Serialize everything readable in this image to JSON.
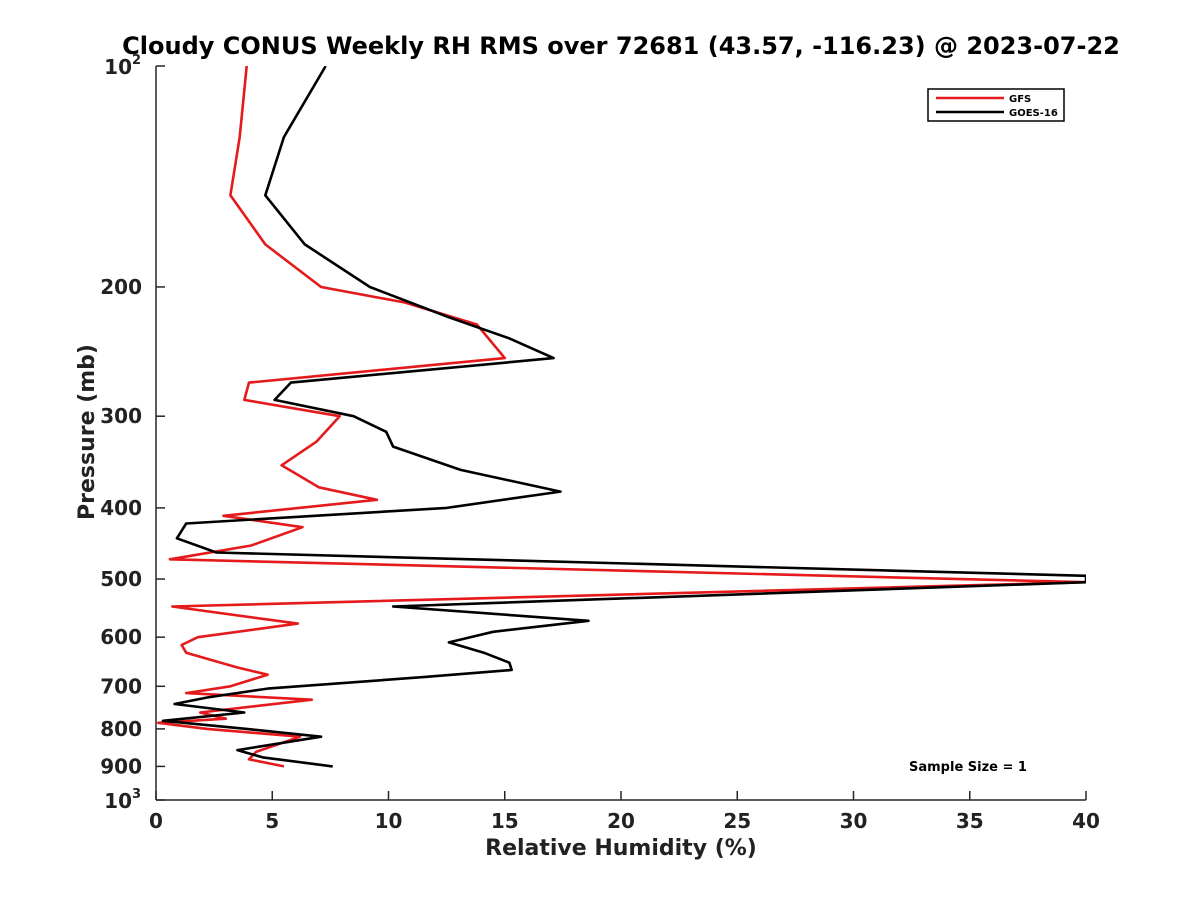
{
  "chart_data": {
    "type": "line",
    "title": "Cloudy CONUS Weekly RH RMS over 72681 (43.57, -116.23) @ 2023-07-22",
    "xlabel": "Relative Humidity (%)",
    "ylabel": "Pressure (mb)",
    "xlim": [
      0,
      40
    ],
    "ylim": [
      1000,
      100
    ],
    "y_scale": "log",
    "x_ticks": [
      "0",
      "5",
      "10",
      "15",
      "20",
      "25",
      "30",
      "35",
      "40"
    ],
    "y_ticks": [
      {
        "value": 100,
        "base": "10",
        "exp": "2"
      },
      {
        "value": 200,
        "label": "200"
      },
      {
        "value": 300,
        "label": "300"
      },
      {
        "value": 400,
        "label": "400"
      },
      {
        "value": 500,
        "label": "500"
      },
      {
        "value": 600,
        "label": "600"
      },
      {
        "value": 700,
        "label": "700"
      },
      {
        "value": 800,
        "label": "800"
      },
      {
        "value": 900,
        "label": "900"
      },
      {
        "value": 1000,
        "base": "10",
        "exp": "3"
      }
    ],
    "legend_position": "top-right",
    "annotation": "Sample Size = 1",
    "series": [
      {
        "name": "GFS",
        "color": "#e41a1c",
        "points": [
          [
            3.9,
            100
          ],
          [
            3.6,
            125
          ],
          [
            3.2,
            150
          ],
          [
            4.7,
            175
          ],
          [
            7.1,
            200
          ],
          [
            10.7,
            210
          ],
          [
            13.8,
            225
          ],
          [
            15.0,
            250
          ],
          [
            4.0,
            270
          ],
          [
            3.8,
            285
          ],
          [
            7.9,
            300
          ],
          [
            6.9,
            325
          ],
          [
            5.4,
            350
          ],
          [
            7.0,
            375
          ],
          [
            9.5,
            390
          ],
          [
            2.9,
            410
          ],
          [
            6.3,
            425
          ],
          [
            4.1,
            450
          ],
          [
            0.6,
            470
          ],
          [
            40.0,
            505
          ],
          [
            0.7,
            545
          ],
          [
            6.1,
            575
          ],
          [
            1.8,
            600
          ],
          [
            1.1,
            615
          ],
          [
            1.3,
            630
          ],
          [
            3.5,
            660
          ],
          [
            4.8,
            675
          ],
          [
            3.2,
            700
          ],
          [
            1.3,
            715
          ],
          [
            6.7,
            730
          ],
          [
            1.9,
            760
          ],
          [
            3.0,
            775
          ],
          [
            0.1,
            785
          ],
          [
            2.2,
            800
          ],
          [
            6.2,
            820
          ],
          [
            4.3,
            860
          ],
          [
            4.0,
            880
          ],
          [
            5.5,
            900
          ]
        ]
      },
      {
        "name": "GOES-16",
        "color": "#000000",
        "points": [
          [
            7.3,
            100
          ],
          [
            5.5,
            125
          ],
          [
            4.7,
            150
          ],
          [
            6.4,
            175
          ],
          [
            9.2,
            200
          ],
          [
            12.6,
            220
          ],
          [
            15.2,
            235
          ],
          [
            17.1,
            250
          ],
          [
            5.8,
            270
          ],
          [
            5.1,
            285
          ],
          [
            8.5,
            300
          ],
          [
            9.9,
            315
          ],
          [
            10.2,
            330
          ],
          [
            13.1,
            355
          ],
          [
            17.4,
            380
          ],
          [
            12.5,
            400
          ],
          [
            1.3,
            420
          ],
          [
            0.9,
            440
          ],
          [
            2.6,
            460
          ],
          [
            40.0,
            495
          ],
          [
            40.0,
            505
          ],
          [
            10.2,
            545
          ],
          [
            18.6,
            570
          ],
          [
            14.5,
            590
          ],
          [
            12.6,
            610
          ],
          [
            14.1,
            630
          ],
          [
            15.2,
            650
          ],
          [
            15.3,
            665
          ],
          [
            11.5,
            680
          ],
          [
            4.8,
            705
          ],
          [
            2.2,
            725
          ],
          [
            0.8,
            740
          ],
          [
            3.8,
            760
          ],
          [
            0.3,
            780
          ],
          [
            3.9,
            800
          ],
          [
            7.1,
            820
          ],
          [
            3.5,
            855
          ],
          [
            4.6,
            875
          ],
          [
            7.6,
            900
          ]
        ]
      }
    ]
  }
}
